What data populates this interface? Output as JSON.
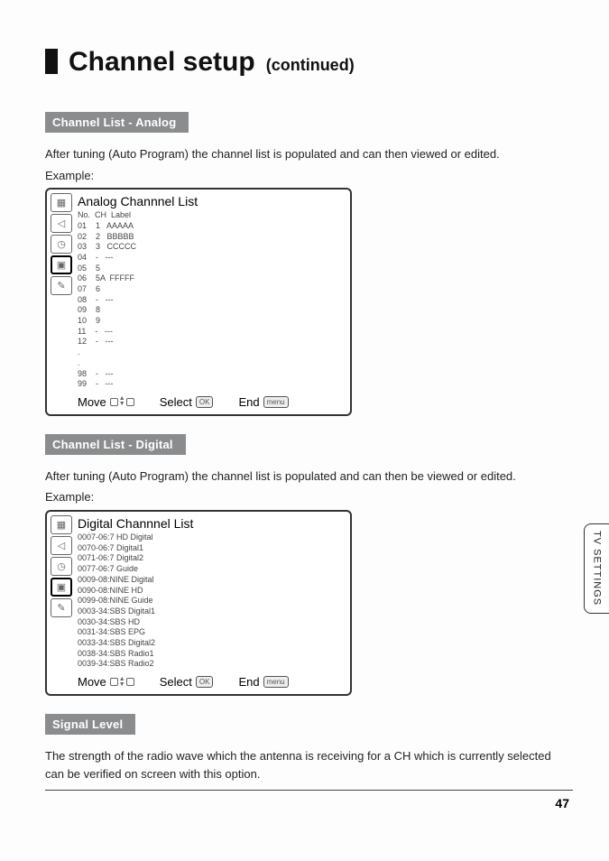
{
  "title": {
    "main": "Channel setup",
    "cont": "(continued)"
  },
  "sections": {
    "analog": {
      "pill": "Channel List - Analog",
      "intro": "After tuning (Auto Program) the channel list is populated and can then viewed or edited.",
      "example_label": "Example:",
      "panel_title": "Analog Channnel List",
      "columns": "No.  CH  Label",
      "rows": [
        "01    1   AAAAA",
        "02    2   BBBBB",
        "03    3   CCCCC",
        "04    -   ---",
        "05    5",
        "06    5A  FFFFF",
        "07    6",
        "08    -   ---",
        "09    8",
        "10    9",
        "11    -   ---",
        "12    -   ---",
        ".",
        ".",
        "98    -   ---",
        "99    -   ---"
      ]
    },
    "digital": {
      "pill": "Channel List - Digital",
      "intro": "After tuning (Auto Program) the channel list is populated and can then be viewed or edited.",
      "example_label": "Example:",
      "panel_title": "Digital Channnel List",
      "rows": [
        "0007-06:7 HD Digital",
        "0070-06:7 Digital1",
        "0071-06:7 Digital2",
        "0077-06:7 Guide",
        "0009-08:NINE Digital",
        "0090-08:NINE HD",
        "0099-08:NINE Guide",
        "0003-34:SBS Digital1",
        "0030-34:SBS HD",
        "0031-34:SBS EPG",
        "0033-34:SBS Digital2",
        "0038-34:SBS Radio1",
        "0039-34:SBS Radio2"
      ]
    },
    "signal": {
      "pill": "Signal Level",
      "intro": "The strength of the radio wave which the antenna is receiving for a CH which is currently selected can be verified on screen with this option."
    }
  },
  "footer_labels": {
    "move": "Move",
    "select": "Select",
    "end": "End",
    "ok": "OK",
    "menu": "menu"
  },
  "icons": [
    "picture-icon",
    "speaker-icon",
    "clock-icon",
    "tv-icon",
    "tools-icon"
  ],
  "icon_glyphs": [
    "▦",
    "◁",
    "◷",
    "▣",
    "✎"
  ],
  "sidebar_tab": "TV SETTINGS",
  "page_number": "47",
  "colors": {
    "pill_bg": "#8a8c8e",
    "pill_fg": "#ffffff",
    "text": "#222222",
    "border": "#333333",
    "page_bg": "#fdfdfd"
  }
}
